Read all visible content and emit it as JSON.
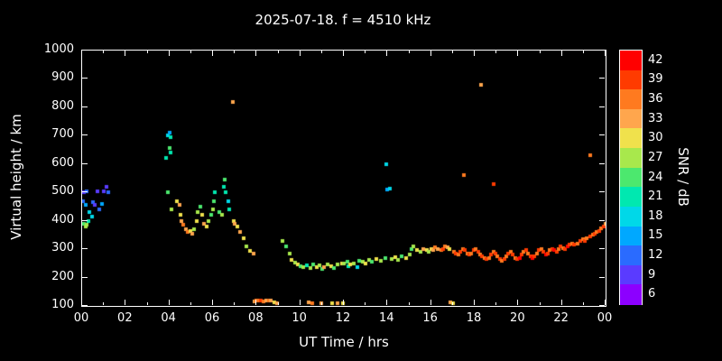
{
  "chart_data": {
    "type": "scatter",
    "title": "2025-07-18. f = 4510 kHz",
    "xlabel": "UT Time / hrs",
    "ylabel": "Virtual height / km",
    "xlim": [
      0,
      24
    ],
    "ylim": [
      100,
      1000
    ],
    "grid": false,
    "background": "#000000",
    "marker": "square",
    "x_ticks": [
      "00",
      "02",
      "04",
      "06",
      "08",
      "10",
      "12",
      "14",
      "16",
      "18",
      "20",
      "22",
      "00"
    ],
    "x_tick_values": [
      0,
      2,
      4,
      6,
      8,
      10,
      12,
      14,
      16,
      18,
      20,
      22,
      24
    ],
    "y_ticks": [
      1000,
      900,
      800,
      700,
      600,
      500,
      400,
      300,
      200,
      100
    ],
    "colorbar": {
      "label": "SNR / dB",
      "min": 6,
      "max": 42,
      "step": 3,
      "stops": [
        {
          "value": 42,
          "color": "#ff0000"
        },
        {
          "value": 39,
          "color": "#ff3b00"
        },
        {
          "value": 36,
          "color": "#ff7a1f"
        },
        {
          "value": 33,
          "color": "#ffa64d"
        },
        {
          "value": 30,
          "color": "#f0e14c"
        },
        {
          "value": 27,
          "color": "#a8e84c"
        },
        {
          "value": 24,
          "color": "#4ce86e"
        },
        {
          "value": 21,
          "color": "#00e8b0"
        },
        {
          "value": 18,
          "color": "#00d8e8"
        },
        {
          "value": 15,
          "color": "#00a8ff"
        },
        {
          "value": 12,
          "color": "#2a6bff"
        },
        {
          "value": 9,
          "color": "#5a3bff"
        },
        {
          "value": 6,
          "color": "#8c00ff"
        }
      ]
    },
    "points": [
      [
        0.05,
        470,
        12
      ],
      [
        0.1,
        500,
        9
      ],
      [
        0.15,
        455,
        15
      ],
      [
        0.2,
        505,
        12
      ],
      [
        0.1,
        390,
        24
      ],
      [
        0.2,
        385,
        27
      ],
      [
        0.3,
        400,
        21
      ],
      [
        0.35,
        430,
        18
      ],
      [
        0.45,
        415,
        18
      ],
      [
        0.5,
        465,
        12
      ],
      [
        0.6,
        455,
        9
      ],
      [
        0.7,
        505,
        9
      ],
      [
        0.8,
        440,
        12
      ],
      [
        0.9,
        460,
        15
      ],
      [
        1.0,
        505,
        9
      ],
      [
        1.1,
        520,
        9
      ],
      [
        1.2,
        500,
        12
      ],
      [
        0.15,
        380,
        27
      ],
      [
        3.85,
        620,
        21
      ],
      [
        3.95,
        700,
        18
      ],
      [
        4.0,
        710,
        15
      ],
      [
        4.05,
        695,
        21
      ],
      [
        4.0,
        655,
        24
      ],
      [
        4.05,
        640,
        21
      ],
      [
        3.95,
        500,
        24
      ],
      [
        4.1,
        440,
        27
      ],
      [
        4.35,
        470,
        30
      ],
      [
        4.45,
        455,
        33
      ],
      [
        4.5,
        420,
        30
      ],
      [
        4.55,
        400,
        33
      ],
      [
        4.65,
        385,
        36
      ],
      [
        4.75,
        370,
        33
      ],
      [
        4.85,
        360,
        36
      ],
      [
        4.95,
        365,
        30
      ],
      [
        5.05,
        355,
        33
      ],
      [
        5.15,
        370,
        27
      ],
      [
        5.25,
        400,
        30
      ],
      [
        5.3,
        430,
        27
      ],
      [
        5.4,
        450,
        24
      ],
      [
        5.5,
        420,
        30
      ],
      [
        5.6,
        390,
        33
      ],
      [
        5.7,
        380,
        30
      ],
      [
        5.8,
        400,
        27
      ],
      [
        5.9,
        420,
        24
      ],
      [
        6.0,
        440,
        27
      ],
      [
        6.05,
        470,
        24
      ],
      [
        6.1,
        500,
        21
      ],
      [
        6.3,
        430,
        24
      ],
      [
        6.4,
        420,
        27
      ],
      [
        6.5,
        520,
        21
      ],
      [
        6.55,
        545,
        24
      ],
      [
        6.6,
        500,
        21
      ],
      [
        6.7,
        470,
        18
      ],
      [
        6.75,
        440,
        21
      ],
      [
        6.9,
        820,
        33
      ],
      [
        6.95,
        400,
        30
      ],
      [
        7.0,
        390,
        33
      ],
      [
        7.1,
        380,
        30
      ],
      [
        7.25,
        360,
        33
      ],
      [
        7.4,
        340,
        30
      ],
      [
        7.55,
        310,
        27
      ],
      [
        7.7,
        295,
        30
      ],
      [
        7.85,
        285,
        33
      ],
      [
        7.9,
        115,
        33
      ],
      [
        8.0,
        118,
        36
      ],
      [
        8.1,
        120,
        36
      ],
      [
        8.2,
        118,
        39
      ],
      [
        8.3,
        116,
        36
      ],
      [
        8.45,
        118,
        33
      ],
      [
        8.55,
        120,
        36
      ],
      [
        8.65,
        118,
        33
      ],
      [
        8.8,
        114,
        30
      ],
      [
        8.95,
        110,
        33
      ],
      [
        9.2,
        330,
        27
      ],
      [
        9.35,
        310,
        24
      ],
      [
        9.5,
        285,
        27
      ],
      [
        9.6,
        262,
        30
      ],
      [
        9.75,
        252,
        27
      ],
      [
        9.9,
        246,
        30
      ],
      [
        10.0,
        240,
        24
      ],
      [
        10.15,
        236,
        27
      ],
      [
        10.3,
        242,
        21
      ],
      [
        10.45,
        232,
        27
      ],
      [
        10.6,
        246,
        24
      ],
      [
        10.75,
        236,
        30
      ],
      [
        10.9,
        242,
        27
      ],
      [
        11.0,
        230,
        24
      ],
      [
        11.1,
        236,
        33
      ],
      [
        11.25,
        246,
        27
      ],
      [
        11.4,
        240,
        30
      ],
      [
        11.55,
        234,
        24
      ],
      [
        11.7,
        246,
        27
      ],
      [
        11.9,
        250,
        30
      ],
      [
        10.4,
        112,
        33
      ],
      [
        10.55,
        110,
        36
      ],
      [
        10.95,
        108,
        33
      ],
      [
        11.45,
        110,
        30
      ],
      [
        11.7,
        108,
        33
      ],
      [
        11.95,
        110,
        30
      ],
      [
        12.0,
        250,
        27
      ],
      [
        12.15,
        255,
        24
      ],
      [
        12.2,
        240,
        21
      ],
      [
        12.3,
        246,
        30
      ],
      [
        12.45,
        250,
        27
      ],
      [
        12.6,
        236,
        18
      ],
      [
        12.7,
        260,
        24
      ],
      [
        12.85,
        255,
        27
      ],
      [
        13.0,
        250,
        30
      ],
      [
        13.15,
        262,
        27
      ],
      [
        13.3,
        255,
        24
      ],
      [
        13.5,
        266,
        30
      ],
      [
        13.7,
        260,
        27
      ],
      [
        13.9,
        270,
        24
      ],
      [
        13.95,
        600,
        18
      ],
      [
        14.0,
        510,
        15
      ],
      [
        14.1,
        515,
        18
      ],
      [
        14.2,
        266,
        27
      ],
      [
        14.35,
        272,
        30
      ],
      [
        14.5,
        262,
        27
      ],
      [
        14.65,
        276,
        24
      ],
      [
        14.85,
        270,
        30
      ],
      [
        15.0,
        280,
        27
      ],
      [
        15.1,
        300,
        24
      ],
      [
        15.2,
        310,
        27
      ],
      [
        15.35,
        296,
        30
      ],
      [
        15.5,
        290,
        27
      ],
      [
        15.65,
        300,
        33
      ],
      [
        15.8,
        296,
        30
      ],
      [
        15.9,
        290,
        27
      ],
      [
        16.0,
        300,
        30
      ],
      [
        16.1,
        296,
        33
      ],
      [
        16.2,
        306,
        36
      ],
      [
        16.3,
        300,
        33
      ],
      [
        16.45,
        296,
        36
      ],
      [
        16.55,
        300,
        39
      ],
      [
        16.65,
        310,
        36
      ],
      [
        16.75,
        306,
        33
      ],
      [
        16.85,
        300,
        30
      ],
      [
        16.9,
        112,
        33
      ],
      [
        17.0,
        110,
        30
      ],
      [
        17.05,
        290,
        36
      ],
      [
        17.15,
        285,
        39
      ],
      [
        17.25,
        280,
        36
      ],
      [
        17.35,
        290,
        39
      ],
      [
        17.45,
        300,
        36
      ],
      [
        17.5,
        560,
        36
      ],
      [
        17.55,
        296,
        39
      ],
      [
        17.65,
        286,
        36
      ],
      [
        17.75,
        280,
        39
      ],
      [
        17.85,
        286,
        36
      ],
      [
        17.95,
        296,
        39
      ],
      [
        18.05,
        300,
        36
      ],
      [
        18.15,
        290,
        39
      ],
      [
        18.25,
        280,
        36
      ],
      [
        18.3,
        880,
        33
      ],
      [
        18.35,
        274,
        39
      ],
      [
        18.45,
        270,
        36
      ],
      [
        18.55,
        266,
        39
      ],
      [
        18.65,
        270,
        36
      ],
      [
        18.75,
        280,
        39
      ],
      [
        18.85,
        530,
        39
      ],
      [
        18.85,
        290,
        36
      ],
      [
        18.95,
        286,
        39
      ],
      [
        19.05,
        276,
        36
      ],
      [
        19.15,
        266,
        39
      ],
      [
        19.25,
        260,
        36
      ],
      [
        19.35,
        266,
        39
      ],
      [
        19.45,
        276,
        36
      ],
      [
        19.55,
        286,
        39
      ],
      [
        19.65,
        290,
        36
      ],
      [
        19.75,
        280,
        39
      ],
      [
        19.85,
        270,
        36
      ],
      [
        19.95,
        266,
        39
      ],
      [
        20.05,
        270,
        42
      ],
      [
        20.15,
        280,
        39
      ],
      [
        20.25,
        290,
        36
      ],
      [
        20.35,
        296,
        39
      ],
      [
        20.45,
        286,
        36
      ],
      [
        20.55,
        276,
        39
      ],
      [
        20.65,
        270,
        42
      ],
      [
        20.75,
        276,
        39
      ],
      [
        20.85,
        286,
        36
      ],
      [
        20.95,
        296,
        39
      ],
      [
        21.05,
        300,
        36
      ],
      [
        21.15,
        290,
        39
      ],
      [
        21.25,
        282,
        42
      ],
      [
        21.35,
        286,
        39
      ],
      [
        21.45,
        296,
        36
      ],
      [
        21.55,
        300,
        39
      ],
      [
        21.65,
        296,
        42
      ],
      [
        21.75,
        290,
        39
      ],
      [
        21.85,
        300,
        36
      ],
      [
        21.95,
        310,
        39
      ],
      [
        22.05,
        305,
        36
      ],
      [
        22.15,
        300,
        39
      ],
      [
        22.25,
        310,
        42
      ],
      [
        22.35,
        315,
        39
      ],
      [
        22.45,
        320,
        36
      ],
      [
        22.55,
        315,
        39
      ],
      [
        22.7,
        320,
        36
      ],
      [
        22.85,
        330,
        39
      ],
      [
        22.95,
        335,
        36
      ],
      [
        23.05,
        330,
        39
      ],
      [
        23.15,
        340,
        36
      ],
      [
        23.3,
        630,
        36
      ],
      [
        23.3,
        345,
        39
      ],
      [
        23.4,
        350,
        36
      ],
      [
        23.5,
        355,
        39
      ],
      [
        23.6,
        360,
        36
      ],
      [
        23.7,
        365,
        39
      ],
      [
        23.8,
        372,
        36
      ],
      [
        23.9,
        380,
        39
      ],
      [
        23.98,
        390,
        33
      ]
    ]
  }
}
